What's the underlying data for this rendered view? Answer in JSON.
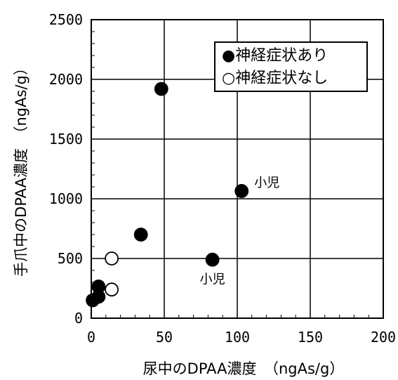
{
  "chart_data": {
    "type": "scatter",
    "xlabel": "尿中のDPAA濃度　（ngAs/g）",
    "ylabel": "手爪中のDPAA濃度　（ngAs/g）",
    "xlim": [
      0,
      200
    ],
    "ylim": [
      0,
      2500
    ],
    "xticks": [
      "0",
      "50",
      "100",
      "150",
      "200"
    ],
    "yticks": [
      "0",
      "500",
      "1000",
      "1500",
      "2000",
      "2500"
    ],
    "grid": true,
    "legend_position": "top-right",
    "series": [
      {
        "name": "●神経症状あり",
        "marker": "filled",
        "points": [
          {
            "x": 1,
            "y": 150
          },
          {
            "x": 5,
            "y": 265
          },
          {
            "x": 5,
            "y": 180
          },
          {
            "x": 34,
            "y": 700
          },
          {
            "x": 48,
            "y": 1920
          },
          {
            "x": 83,
            "y": 490
          },
          {
            "x": 103,
            "y": 1065
          }
        ]
      },
      {
        "name": "○神経症状なし",
        "marker": "open",
        "points": [
          {
            "x": 14,
            "y": 500
          },
          {
            "x": 14,
            "y": 240
          }
        ]
      }
    ],
    "annotations": [
      {
        "text": "小児",
        "x": 103,
        "y": 1065,
        "position": "right"
      },
      {
        "text": "小児",
        "x": 83,
        "y": 490,
        "position": "below"
      }
    ]
  }
}
